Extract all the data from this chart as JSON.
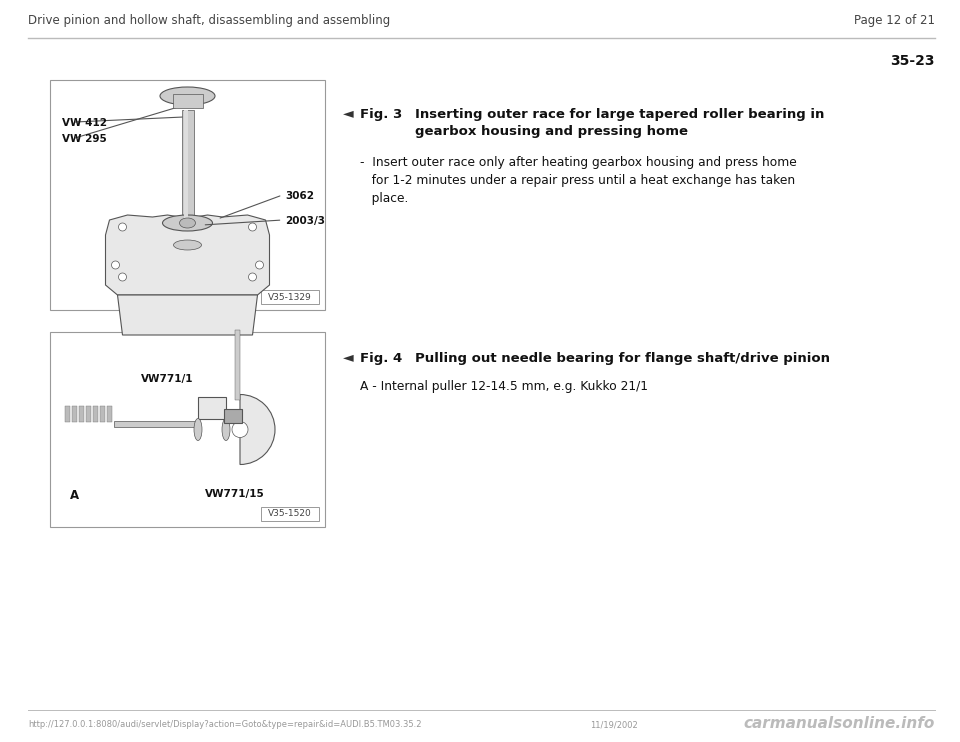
{
  "page_title": "Drive pinion and hollow shaft, disassembling and assembling",
  "page_number": "Page 12 of 21",
  "section_number": "35-23",
  "footer_url": "http://127.0.0.1:8080/audi/servlet/Display?action=Goto&type=repair&id=AUDI.B5.TM03.35.2",
  "footer_date": "11/19/2002",
  "footer_brand": "carmanualsonline.info",
  "fig3_label": "Fig. 3",
  "fig3_title": "Inserting outer race for large tapered roller bearing in\ngearbox housing and pressing home",
  "fig3_bullet": "-  Insert outer race only after heating gearbox housing and press home\n   for 1-2 minutes under a repair press until a heat exchange has taken\n   place.",
  "fig4_label": "Fig. 4",
  "fig4_title": "Pulling out needle bearing for flange shaft/drive pinion",
  "fig4_bullet": "A - Internal puller 12-14.5 mm, e.g. Kukko 21/1",
  "img1_label": "V35-1329",
  "img2_label": "V35-1520",
  "bg_color": "#ffffff",
  "line_color": "#bbbbbb",
  "box_edge_color": "#999999",
  "draw_edge_color": "#555555",
  "draw_fill_light": "#e8e8e8",
  "draw_fill_mid": "#cccccc",
  "draw_fill_dark": "#aaaaaa",
  "text_dark": "#111111",
  "text_mid": "#444444",
  "text_light": "#888888",
  "footer_gray": "#999999",
  "arrow_color": "#333333"
}
